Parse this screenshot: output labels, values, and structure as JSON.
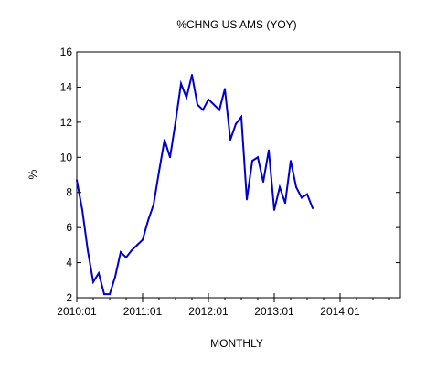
{
  "chart_data": {
    "type": "line",
    "title": "%CHNG US AMS (YOY)",
    "xlabel": "MONTHLY",
    "ylabel": "%",
    "ylim": [
      2,
      16
    ],
    "yticks": [
      2,
      4,
      6,
      8,
      10,
      12,
      14,
      16
    ],
    "xlim": [
      0,
      59
    ],
    "xticks": [
      {
        "label": "2010:01",
        "index": 0
      },
      {
        "label": "2011:01",
        "index": 12
      },
      {
        "label": "2012:01",
        "index": 24
      },
      {
        "label": "2013:01",
        "index": 36
      },
      {
        "label": "2014:01",
        "index": 48
      }
    ],
    "grid": false,
    "legend": "none",
    "series": [
      {
        "color": "#0000cc",
        "x": [
          "2010:01",
          "2010:02",
          "2010:03",
          "2010:04",
          "2010:05",
          "2010:06",
          "2010:07",
          "2010:08",
          "2010:09",
          "2010:10",
          "2010:11",
          "2010:12",
          "2011:01",
          "2011:02",
          "2011:03",
          "2011:04",
          "2011:05",
          "2011:06",
          "2011:07",
          "2011:08",
          "2011:09",
          "2011:10",
          "2011:11",
          "2011:12",
          "2012:01",
          "2012:02",
          "2012:03",
          "2012:04",
          "2012:05",
          "2012:06",
          "2012:07",
          "2012:08",
          "2012:09",
          "2012:10",
          "2012:11",
          "2012:12",
          "2013:01",
          "2013:02",
          "2013:03",
          "2013:04",
          "2013:05",
          "2013:06",
          "2013:07",
          "2013:08"
        ],
        "values": [
          8.7,
          7.0,
          4.7,
          2.9,
          3.4,
          2.2,
          2.2,
          3.2,
          4.6,
          4.3,
          4.7,
          5.0,
          5.3,
          6.4,
          7.3,
          9.2,
          11.0,
          10.0,
          12.0,
          14.2,
          13.4,
          14.7,
          13.0,
          12.7,
          13.3,
          13.0,
          12.7,
          13.9,
          11.0,
          11.9,
          12.3,
          7.6,
          9.8,
          10.0,
          8.6,
          10.4,
          7.0,
          8.3,
          7.4,
          9.8,
          8.3,
          7.7,
          7.9,
          7.1
        ]
      }
    ]
  }
}
